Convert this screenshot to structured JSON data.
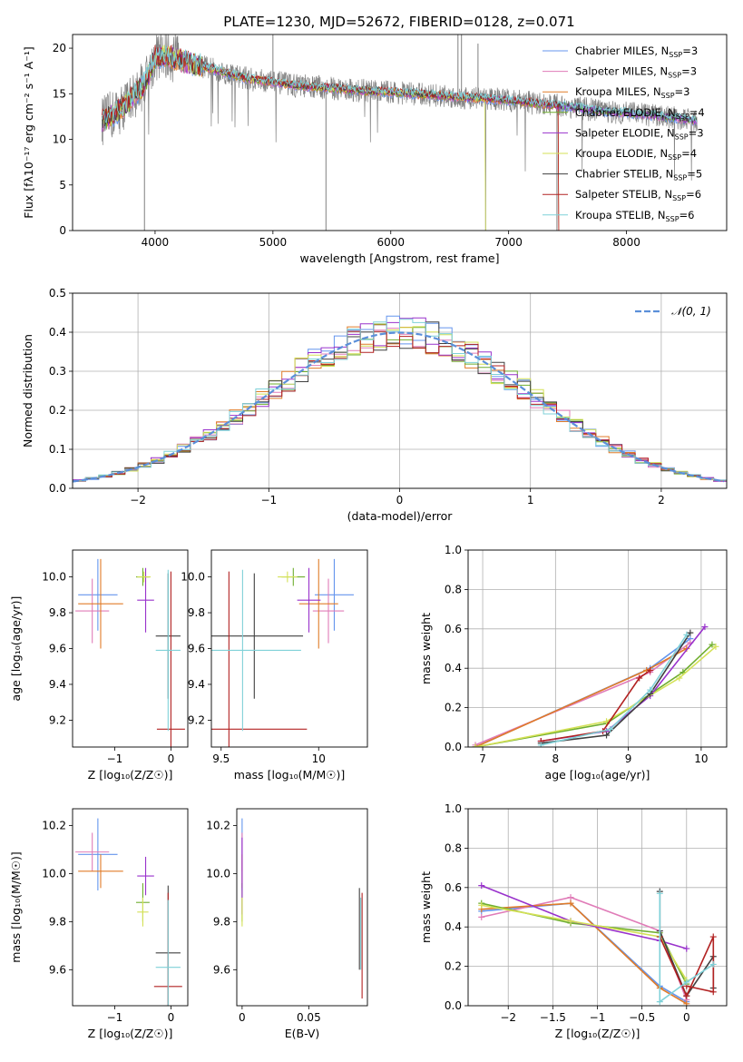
{
  "figure": {
    "title": "PLATE=1230, MJD=52672, FIBERID=0128, z=0.071"
  },
  "series_styles": [
    {
      "name": "Chabrier MILES, N_SSP=3",
      "color": "#6495ed"
    },
    {
      "name": "Salpeter MILES, N_SSP=3",
      "color": "#e07cb8"
    },
    {
      "name": "Kroupa MILES, N_SSP=3",
      "color": "#e07b28"
    },
    {
      "name": "Chabrier ELODIE, N_SSP=4",
      "color": "#6fae2e"
    },
    {
      "name": "Salpeter ELODIE, N_SSP=3",
      "color": "#9932cc"
    },
    {
      "name": "Kroupa ELODIE, N_SSP=4",
      "color": "#d4e157"
    },
    {
      "name": "Chabrier STELIB, N_SSP=5",
      "color": "#404040"
    },
    {
      "name": "Salpeter STELIB, N_SSP=6",
      "color": "#b22222"
    },
    {
      "name": "Kroupa STELIB, N_SSP=6",
      "color": "#7fd1d8"
    }
  ],
  "chart_data": [
    {
      "id": "spectrum",
      "type": "line",
      "xlabel": "wavelength [Angstrom, rest frame]",
      "ylabel": "Flux [fλ10⁻¹⁷ erg cm⁻² s⁻¹ A⁻¹]",
      "xlim": [
        3300,
        8850
      ],
      "ylim": [
        0,
        21.5
      ],
      "xticks": [
        4000,
        5000,
        6000,
        7000,
        8000
      ],
      "yticks": [
        0,
        5,
        10,
        15,
        20
      ],
      "legend": "upper right",
      "legend_entries": [
        {
          "prefix": "Chabrier MILES, N",
          "sub": "SSP",
          "suffix": "=3"
        },
        {
          "prefix": "Salpeter MILES, N",
          "sub": "SSP",
          "suffix": "=3"
        },
        {
          "prefix": "Kroupa MILES, N",
          "sub": "SSP",
          "suffix": "=3"
        },
        {
          "prefix": "Chabrier ELODIE, N",
          "sub": "SSP",
          "suffix": "=4"
        },
        {
          "prefix": "Salpeter ELODIE, N",
          "sub": "SSP",
          "suffix": "=3"
        },
        {
          "prefix": "Kroupa ELODIE, N",
          "sub": "SSP",
          "suffix": "=4"
        },
        {
          "prefix": "Chabrier STELIB, N",
          "sub": "SSP",
          "suffix": "=5"
        },
        {
          "prefix": "Salpeter STELIB, N",
          "sub": "SSP",
          "suffix": "=6"
        },
        {
          "prefix": "Kroupa STELIB, N",
          "sub": "SSP",
          "suffix": "=6"
        }
      ],
      "continuum": {
        "x": [
          3550,
          3700,
          3800,
          3900,
          3950,
          4000,
          4100,
          4200,
          4400,
          4600,
          4800,
          5000,
          5200,
          5500,
          5800,
          6000,
          6300,
          6600,
          6900,
          7200,
          7500,
          7800,
          8100,
          8400,
          8600
        ],
        "y": [
          12.0,
          13.2,
          14.5,
          16.0,
          17.2,
          19.0,
          19.2,
          18.7,
          18.0,
          17.3,
          16.6,
          16.3,
          15.9,
          15.6,
          15.3,
          15.2,
          14.9,
          14.6,
          14.4,
          14.0,
          13.6,
          13.1,
          12.8,
          12.4,
          12.0
        ]
      },
      "data_line_color": "#808080",
      "data_spikes": [
        {
          "x": 3910,
          "y": 0
        },
        {
          "x": 5450,
          "y": 0
        },
        {
          "x": 6805,
          "y": 0
        },
        {
          "x": 7410,
          "y": 0
        },
        {
          "x": 6570,
          "y": 21.5
        },
        {
          "x": 6600,
          "y": 21.5
        },
        {
          "x": 6740,
          "y": 20.5
        },
        {
          "x": 5000,
          "y": 21.5
        }
      ]
    },
    {
      "id": "residuals",
      "type": "bar",
      "xlabel": "(data-model)/error",
      "ylabel": "Normed distribution",
      "xlim": [
        -2.5,
        2.5
      ],
      "ylim": [
        0,
        0.5
      ],
      "xticks": [
        -2,
        -1,
        0,
        1,
        2
      ],
      "yticks": [
        0.0,
        0.1,
        0.2,
        0.3,
        0.4,
        0.5
      ],
      "bin_width": 0.1,
      "legend": "upper right",
      "legend_label": "𝒩(0, 1)",
      "normal_curve": {
        "mean": 0,
        "sigma": 1,
        "color": "#5b8fd9"
      }
    },
    {
      "id": "age-vs-Z",
      "type": "scatter",
      "xlabel": "Z [log₁₀(Z/Z☉)]",
      "ylabel": "age  [log₁₀(age/yr)]",
      "xlim": [
        -1.75,
        0.3
      ],
      "ylim": [
        9.05,
        10.15
      ],
      "xticks": [
        -1,
        0
      ],
      "yticks": [
        9.2,
        9.4,
        9.6,
        9.8,
        10.0
      ],
      "points": [
        {
          "s": 0,
          "x": -1.3,
          "xerr": 0.35,
          "y": 9.9,
          "yerr": 0.2
        },
        {
          "s": 1,
          "x": -1.4,
          "xerr": 0.3,
          "y": 9.81,
          "yerr": 0.18
        },
        {
          "s": 2,
          "x": -1.25,
          "xerr": 0.4,
          "y": 9.85,
          "yerr": 0.25
        },
        {
          "s": 3,
          "x": -0.5,
          "xerr": 0.12,
          "y": 10.0,
          "yerr": 0.05
        },
        {
          "s": 4,
          "x": -0.45,
          "xerr": 0.15,
          "y": 9.87,
          "yerr": 0.18
        },
        {
          "s": 5,
          "x": -0.48,
          "xerr": 0.12,
          "y": 10.0,
          "yerr": 0.03
        },
        {
          "s": 6,
          "x": -0.05,
          "xerr": 0.22,
          "y": 9.67,
          "yerr": 0.35
        },
        {
          "s": 7,
          "x": 0.0,
          "xerr": 0.25,
          "y": 9.15,
          "yerr": 0.88
        },
        {
          "s": 8,
          "x": -0.05,
          "xerr": 0.22,
          "y": 9.59,
          "yerr": 0.45
        }
      ]
    },
    {
      "id": "age-vs-mass",
      "type": "scatter",
      "xlabel": "mass [log₁₀(M/M☉)]",
      "ylabel": "",
      "xlim": [
        9.45,
        10.25
      ],
      "ylim": [
        9.05,
        10.15
      ],
      "xticks": [
        9.5,
        10.0
      ],
      "yticks": [
        9.2,
        9.4,
        9.6,
        9.8,
        10.0
      ],
      "points": [
        {
          "s": 0,
          "x": 10.08,
          "xerr": 0.1,
          "y": 9.9,
          "yerr": 0.2
        },
        {
          "s": 1,
          "x": 10.05,
          "xerr": 0.08,
          "y": 9.81,
          "yerr": 0.18
        },
        {
          "s": 2,
          "x": 10.0,
          "xerr": 0.1,
          "y": 9.85,
          "yerr": 0.25
        },
        {
          "s": 3,
          "x": 9.87,
          "xerr": 0.06,
          "y": 10.0,
          "yerr": 0.05
        },
        {
          "s": 4,
          "x": 9.95,
          "xerr": 0.06,
          "y": 9.87,
          "yerr": 0.18
        },
        {
          "s": 5,
          "x": 9.84,
          "xerr": 0.05,
          "y": 10.0,
          "yerr": 0.03
        },
        {
          "s": 6,
          "x": 9.67,
          "xerr": 0.25,
          "y": 9.67,
          "yerr": 0.35
        },
        {
          "s": 7,
          "x": 9.54,
          "xerr": 0.4,
          "y": 9.15,
          "yerr": 0.88
        },
        {
          "s": 8,
          "x": 9.61,
          "xerr": 0.3,
          "y": 9.59,
          "yerr": 0.45
        }
      ]
    },
    {
      "id": "massweight-vs-age",
      "type": "line",
      "xlabel": "age  [log₁₀(age/yr)]",
      "ylabel": "mass weight",
      "xlim": [
        6.8,
        10.35
      ],
      "ylim": [
        0,
        1.0
      ],
      "xticks": [
        7,
        8,
        9,
        10
      ],
      "yticks": [
        0.0,
        0.2,
        0.4,
        0.6,
        0.8,
        1.0
      ],
      "series": [
        {
          "s": 0,
          "x": [
            6.9,
            9.3,
            9.85
          ],
          "y": [
            0.0,
            0.4,
            0.55
          ]
        },
        {
          "s": 1,
          "x": [
            6.9,
            9.3,
            9.85
          ],
          "y": [
            0.01,
            0.38,
            0.53
          ]
        },
        {
          "s": 2,
          "x": [
            6.9,
            9.25,
            9.8
          ],
          "y": [
            0.0,
            0.39,
            0.5
          ]
        },
        {
          "s": 3,
          "x": [
            6.9,
            8.7,
            9.75,
            10.15
          ],
          "y": [
            0.0,
            0.12,
            0.38,
            0.52
          ]
        },
        {
          "s": 4,
          "x": [
            7.8,
            8.7,
            9.3,
            10.05
          ],
          "y": [
            0.03,
            0.08,
            0.26,
            0.61
          ]
        },
        {
          "s": 5,
          "x": [
            6.9,
            8.7,
            9.7,
            10.2
          ],
          "y": [
            0.0,
            0.13,
            0.35,
            0.51
          ]
        },
        {
          "s": 6,
          "x": [
            7.8,
            8.7,
            9.3,
            9.85
          ],
          "y": [
            0.02,
            0.06,
            0.27,
            0.58
          ]
        },
        {
          "s": 7,
          "x": [
            7.8,
            8.65,
            9.15,
            9.3
          ],
          "y": [
            0.03,
            0.08,
            0.35,
            0.39
          ]
        },
        {
          "s": 8,
          "x": [
            7.8,
            8.75,
            9.3,
            9.8
          ],
          "y": [
            0.01,
            0.09,
            0.29,
            0.57
          ]
        }
      ]
    },
    {
      "id": "mass-vs-Z",
      "type": "scatter",
      "xlabel": "Z [log₁₀(Z/Z☉)]",
      "ylabel": "mass [log₁₀(M/M☉)]",
      "xlim": [
        -1.75,
        0.3
      ],
      "ylim": [
        9.45,
        10.27
      ],
      "xticks": [
        -1,
        0
      ],
      "yticks": [
        9.6,
        9.8,
        10.0,
        10.2
      ],
      "points": [
        {
          "s": 0,
          "x": -1.3,
          "xerr": 0.35,
          "y": 10.08,
          "yerr": 0.15
        },
        {
          "s": 1,
          "x": -1.4,
          "xerr": 0.3,
          "y": 10.09,
          "yerr": 0.08
        },
        {
          "s": 2,
          "x": -1.25,
          "xerr": 0.4,
          "y": 10.01,
          "yerr": 0.07
        },
        {
          "s": 3,
          "x": -0.5,
          "xerr": 0.12,
          "y": 9.88,
          "yerr": 0.08
        },
        {
          "s": 4,
          "x": -0.45,
          "xerr": 0.15,
          "y": 9.99,
          "yerr": 0.08
        },
        {
          "s": 5,
          "x": -0.5,
          "xerr": 0.1,
          "y": 9.84,
          "yerr": 0.06
        },
        {
          "s": 6,
          "x": -0.05,
          "xerr": 0.22,
          "y": 9.67,
          "yerr": 0.28
        },
        {
          "s": 7,
          "x": -0.05,
          "xerr": 0.25,
          "y": 9.53,
          "yerr": 0.39
        },
        {
          "s": 8,
          "x": -0.05,
          "xerr": 0.22,
          "y": 9.61,
          "yerr": 0.28
        }
      ]
    },
    {
      "id": "mass-vs-EBV",
      "type": "scatter",
      "xlabel": "E(B-V)",
      "ylabel": "",
      "xlim": [
        -0.004,
        0.094
      ],
      "ylim": [
        9.45,
        10.27
      ],
      "xticks": [
        0.0,
        0.05
      ],
      "yticks": [
        9.6,
        9.8,
        10.0,
        10.2
      ],
      "points": [
        {
          "s": 0,
          "x": 0.0,
          "xerr": 0.0,
          "y": 10.08,
          "yerr": 0.15
        },
        {
          "s": 1,
          "x": 0.0,
          "xerr": 0.0,
          "y": 10.09,
          "yerr": 0.08
        },
        {
          "s": 2,
          "x": 0.0,
          "xerr": 0.0,
          "y": 10.01,
          "yerr": 0.07
        },
        {
          "s": 3,
          "x": 0.0,
          "xerr": 0.0,
          "y": 9.88,
          "yerr": 0.08
        },
        {
          "s": 4,
          "x": 0.0,
          "xerr": 0.0,
          "y": 9.99,
          "yerr": 0.16
        },
        {
          "s": 5,
          "x": 0.0,
          "xerr": 0.0,
          "y": 9.84,
          "yerr": 0.06
        },
        {
          "s": 6,
          "x": 0.088,
          "xerr": 0.0,
          "y": 9.77,
          "yerr": 0.17
        },
        {
          "s": 7,
          "x": 0.09,
          "xerr": 0.0,
          "y": 9.7,
          "yerr": 0.22
        },
        {
          "s": 8,
          "x": 0.089,
          "xerr": 0.0,
          "y": 9.75,
          "yerr": 0.15
        }
      ]
    },
    {
      "id": "massweight-vs-Z",
      "type": "line",
      "xlabel": "Z [log₁₀(Z/Z☉)]",
      "ylabel": "mass weight",
      "xlim": [
        -2.45,
        0.45
      ],
      "ylim": [
        0,
        1.0
      ],
      "xticks": [
        -2.0,
        -1.5,
        -1.0,
        -0.5,
        0.0
      ],
      "yticks": [
        0.0,
        0.2,
        0.4,
        0.6,
        0.8,
        1.0
      ],
      "series": [
        {
          "s": 0,
          "x": [
            -2.3,
            -1.3,
            -0.3,
            0.0
          ],
          "y": [
            0.48,
            0.52,
            0.1,
            0.02
          ]
        },
        {
          "s": 1,
          "x": [
            -2.3,
            -1.3,
            -0.3,
            0.0
          ],
          "y": [
            0.45,
            0.55,
            0.38,
            0.03
          ]
        },
        {
          "s": 2,
          "x": [
            -2.3,
            -1.3,
            -0.3,
            0.0
          ],
          "y": [
            0.49,
            0.52,
            0.09,
            0.01
          ]
        },
        {
          "s": 3,
          "x": [
            -2.3,
            -1.3,
            -0.3,
            0.0
          ],
          "y": [
            0.52,
            0.42,
            0.37,
            0.11
          ]
        },
        {
          "s": 4,
          "x": [
            -2.3,
            -1.3,
            -0.3,
            0.0
          ],
          "y": [
            0.61,
            0.43,
            0.33,
            0.29
          ]
        },
        {
          "s": 5,
          "x": [
            -2.3,
            -1.3,
            -0.3,
            0.0
          ],
          "y": [
            0.51,
            0.43,
            0.35,
            0.13
          ]
        },
        {
          "s": 6,
          "x": [
            -0.3,
            -0.3,
            0.0,
            0.3,
            0.3
          ],
          "y": [
            0.58,
            0.38,
            0.05,
            0.25,
            0.09
          ]
        },
        {
          "s": 7,
          "x": [
            -0.3,
            0.0,
            0.3,
            0.3,
            0.0
          ],
          "y": [
            0.35,
            0.05,
            0.35,
            0.07,
            0.1
          ]
        },
        {
          "s": 8,
          "x": [
            -0.3,
            -0.3,
            0.0,
            0.3
          ],
          "y": [
            0.57,
            0.02,
            0.12,
            0.21
          ]
        }
      ]
    }
  ]
}
